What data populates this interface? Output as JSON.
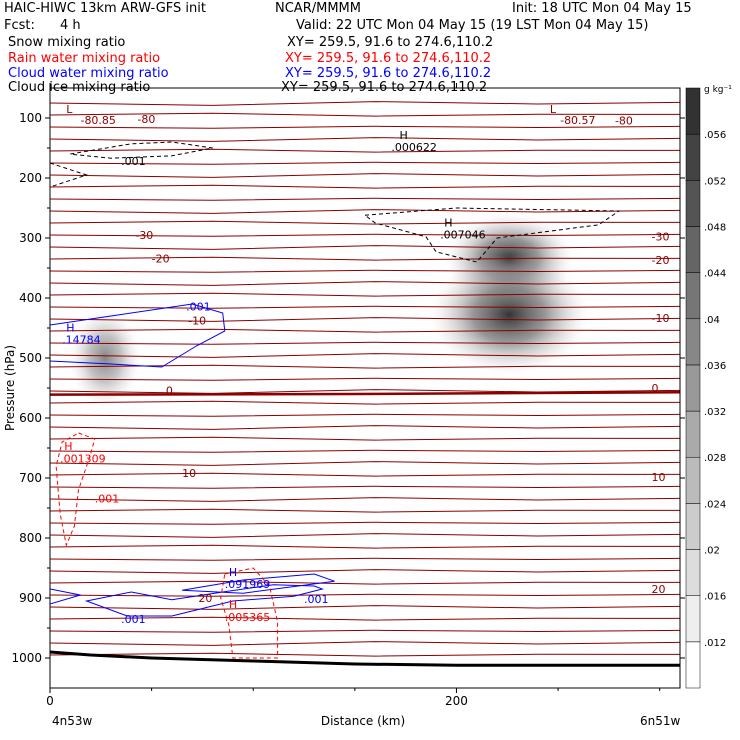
{
  "header": {
    "title_left": "HAIC-HIWC 13km ARW-GFS init",
    "org": "NCAR/MMMM",
    "init": "Init: 18 UTC Mon 04 May 15",
    "fcst_label": "Fcst:",
    "fcst_value": "4 h",
    "valid": "Valid: 22 UTC Mon 04 May 15 (19 LST Mon 04 May 15)",
    "fields": [
      {
        "name": "Snow mixing ratio",
        "xy": "XY= 259.5, 91.6 to 274.6,110.2",
        "color": "#000000"
      },
      {
        "name": "Rain water mixing ratio",
        "xy": "XY= 259.5, 91.6 to 274.6,110.2",
        "color": "#ff0000"
      },
      {
        "name": "Cloud water mixing ratio",
        "xy": "XY= 259.5, 91.6 to 274.6,110.2",
        "color": "#0000ff"
      },
      {
        "name": "Cloud ice mixing ratio",
        "xy": "XY= 259.5, 91.6 to 274.6,110.2",
        "color": "#000000"
      }
    ]
  },
  "chart_data": {
    "type": "heatmap",
    "description_type": "cross-section",
    "xlabel": "Distance (km)",
    "ylabel": "Pressure (hPa)",
    "xlim": [
      0,
      310
    ],
    "ylim": [
      1050,
      50
    ],
    "x_ticks": [
      0,
      200
    ],
    "y_ticks": [
      100,
      200,
      300,
      400,
      500,
      600,
      700,
      800,
      900,
      1000
    ],
    "x_endpoints": {
      "left": "4n53w",
      "right": "6n51w"
    },
    "colorbar": {
      "unit": "g kg⁻¹",
      "levels": [
        0.012,
        0.016,
        0.02,
        0.024,
        0.028,
        0.032,
        0.036,
        0.04,
        0.044,
        0.048,
        0.052,
        0.056
      ],
      "labels": [
        ".012",
        ".016",
        ".02",
        ".024",
        ".028",
        ".032",
        ".036",
        ".04",
        ".044",
        ".048",
        ".052",
        ".056"
      ]
    },
    "temperature_contours": {
      "color": "#8b0000",
      "labels": [
        {
          "text": "-80.85",
          "x": 15,
          "p": 110
        },
        {
          "text": "-80",
          "x": 43,
          "p": 108
        },
        {
          "text": "-80.57",
          "x": 251,
          "p": 110
        },
        {
          "text": "-80",
          "x": 278,
          "p": 111
        },
        {
          "text": "-30",
          "x": 42,
          "p": 302
        },
        {
          "text": "-30",
          "x": 296,
          "p": 304
        },
        {
          "text": "-20",
          "x": 50,
          "p": 341
        },
        {
          "text": "-20",
          "x": 296,
          "p": 343
        },
        {
          "text": "-10",
          "x": 68,
          "p": 444
        },
        {
          "text": "-10",
          "x": 296,
          "p": 440
        },
        {
          "text": "0",
          "x": 57,
          "p": 561
        },
        {
          "text": "0",
          "x": 296,
          "p": 557
        },
        {
          "text": "10",
          "x": 65,
          "p": 698
        },
        {
          "text": "10",
          "x": 296,
          "p": 705
        },
        {
          "text": "20",
          "x": 73,
          "p": 907
        },
        {
          "text": "20",
          "x": 296,
          "p": 892
        }
      ],
      "extrema": [
        {
          "text": "L",
          "x": 8,
          "p": 92
        },
        {
          "text": "L",
          "x": 246,
          "p": 92
        }
      ]
    },
    "snow": {
      "color": "#000000",
      "labels": [
        {
          "text": "H",
          "x": 172,
          "p": 135
        },
        {
          "text": ".000622",
          "x": 168,
          "p": 155
        },
        {
          "text": "H",
          "x": 194,
          "p": 281
        },
        {
          "text": ".007046",
          "x": 192,
          "p": 301
        },
        {
          "text": ".001",
          "x": 35,
          "p": 178
        }
      ]
    },
    "cloud_water": {
      "color": "#0000ff",
      "labels": [
        {
          "text": "H",
          "x": 8,
          "p": 456
        },
        {
          "text": ".14784",
          "x": 6,
          "p": 476
        },
        {
          "text": ".001",
          "x": 67,
          "p": 421
        },
        {
          "text": "H",
          "x": 88,
          "p": 863
        },
        {
          "text": ".091969",
          "x": 86,
          "p": 883
        },
        {
          "text": ".001",
          "x": 125,
          "p": 908
        },
        {
          "text": ".001",
          "x": 35,
          "p": 942
        }
      ]
    },
    "rain_water": {
      "color": "#ff0000",
      "labels": [
        {
          "text": "H",
          "x": 7,
          "p": 653
        },
        {
          "text": ".001309",
          "x": 5,
          "p": 674
        },
        {
          "text": ".001",
          "x": 22,
          "p": 741
        },
        {
          "text": "H",
          "x": 88,
          "p": 917
        },
        {
          "text": ".005365",
          "x": 86,
          "p": 938
        }
      ]
    },
    "ice_blobs": [
      {
        "x": 226,
        "p": 335,
        "value": 0.05
      },
      {
        "x": 226,
        "p": 428,
        "value": 0.06
      },
      {
        "x": 27,
        "p": 500,
        "value": 0.03
      }
    ],
    "terrain": [
      [
        0,
        990
      ],
      [
        20,
        995
      ],
      [
        50,
        1000
      ],
      [
        100,
        1005
      ],
      [
        150,
        1010
      ],
      [
        200,
        1012
      ],
      [
        250,
        1012
      ],
      [
        310,
        1012
      ]
    ],
    "grid": false
  }
}
